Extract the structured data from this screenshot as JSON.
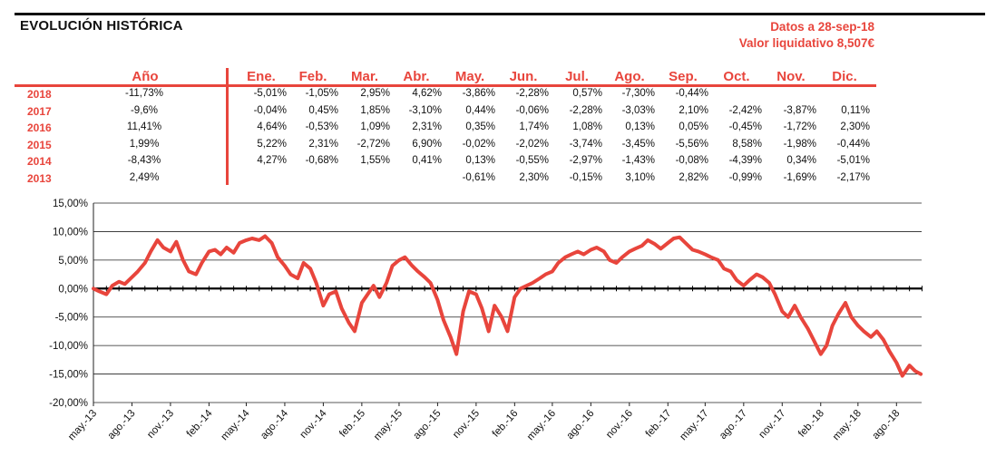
{
  "header": {
    "title": "EVOLUCIÓN HISTÓRICA",
    "date_label": "Datos a 28-sep-18",
    "nav_label": "Valor liquidativo 8,507€"
  },
  "table": {
    "year_header": "Año",
    "month_headers": [
      "Ene.",
      "Feb.",
      "Mar.",
      "Abr.",
      "May.",
      "Jun.",
      "Jul.",
      "Ago.",
      "Sep.",
      "Oct.",
      "Nov.",
      "Dic."
    ],
    "rows": [
      {
        "year": "2018",
        "annual": "-11,73%",
        "months": [
          "-5,01%",
          "-1,05%",
          "2,95%",
          "4,62%",
          "-3,86%",
          "-2,28%",
          "0,57%",
          "-7,30%",
          "-0,44%",
          "",
          "",
          ""
        ]
      },
      {
        "year": "2017",
        "annual": "-9,6%",
        "months": [
          "-0,04%",
          "0,45%",
          "1,85%",
          "-3,10%",
          "0,44%",
          "-0,06%",
          "-2,28%",
          "-3,03%",
          "2,10%",
          "-2,42%",
          "-3,87%",
          "0,11%"
        ]
      },
      {
        "year": "2016",
        "annual": "11,41%",
        "months": [
          "4,64%",
          "-0,53%",
          "1,09%",
          "2,31%",
          "0,35%",
          "1,74%",
          "1,08%",
          "0,13%",
          "0,05%",
          "-0,45%",
          "-1,72%",
          "2,30%"
        ]
      },
      {
        "year": "2015",
        "annual": "1,99%",
        "months": [
          "5,22%",
          "2,31%",
          "-2,72%",
          "6,90%",
          "-0,02%",
          "-2,02%",
          "-3,74%",
          "-3,45%",
          "-5,56%",
          "8,58%",
          "-1,98%",
          "-0,44%"
        ]
      },
      {
        "year": "2014",
        "annual": "-8,43%",
        "months": [
          "4,27%",
          "-0,68%",
          "1,55%",
          "0,41%",
          "0,13%",
          "-0,55%",
          "-2,97%",
          "-1,43%",
          "-0,08%",
          "-4,39%",
          "0,34%",
          "-5,01%"
        ]
      },
      {
        "year": "2013",
        "annual": "2,49%",
        "months": [
          "",
          "",
          "",
          "",
          "-0,61%",
          "2,30%",
          "-0,15%",
          "3,10%",
          "2,82%",
          "-0,99%",
          "-1,69%",
          "-2,17%"
        ]
      }
    ]
  },
  "chart_data": {
    "type": "line",
    "title": "",
    "xlabel": "",
    "ylabel": "",
    "ylim": [
      -20,
      15
    ],
    "y_ticks": [
      "15,00%",
      "10,00%",
      "5,00%",
      "0,00%",
      "-5,00%",
      "-10,00%",
      "-15,00%",
      "-20,00%"
    ],
    "y_tick_values": [
      15,
      10,
      5,
      0,
      -5,
      -10,
      -15,
      -20
    ],
    "x_ticks": [
      "may.-13",
      "ago.-13",
      "nov.-13",
      "feb.-14",
      "may.-14",
      "ago.-14",
      "nov.-14",
      "feb.-15",
      "may.-15",
      "ago.-15",
      "nov.-15",
      "feb.-16",
      "may.-16",
      "ago.-16",
      "nov.-16",
      "feb.-17",
      "may.-17",
      "ago.-17",
      "nov.-17",
      "feb.-18",
      "may.-18",
      "ago.-18"
    ],
    "grid": true,
    "line_color": "#e8453c",
    "series": [
      {
        "values": [
          [
            "2013-05-01",
            0.0
          ],
          [
            "2013-05-15",
            -0.5
          ],
          [
            "2013-06-01",
            -1.0
          ],
          [
            "2013-06-15",
            0.5
          ],
          [
            "2013-07-01",
            1.2
          ],
          [
            "2013-07-15",
            0.8
          ],
          [
            "2013-08-01",
            2.0
          ],
          [
            "2013-08-15",
            3.0
          ],
          [
            "2013-09-01",
            4.5
          ],
          [
            "2013-09-15",
            6.5
          ],
          [
            "2013-10-01",
            8.5
          ],
          [
            "2013-10-15",
            7.2
          ],
          [
            "2013-11-01",
            6.5
          ],
          [
            "2013-11-15",
            8.2
          ],
          [
            "2013-12-01",
            5.0
          ],
          [
            "2013-12-15",
            3.0
          ],
          [
            "2014-01-01",
            2.5
          ],
          [
            "2014-01-15",
            4.5
          ],
          [
            "2014-02-01",
            6.5
          ],
          [
            "2014-02-15",
            6.8
          ],
          [
            "2014-03-01",
            6.0
          ],
          [
            "2014-03-15",
            7.2
          ],
          [
            "2014-04-01",
            6.3
          ],
          [
            "2014-04-15",
            8.0
          ],
          [
            "2014-05-01",
            8.5
          ],
          [
            "2014-05-15",
            8.8
          ],
          [
            "2014-06-01",
            8.5
          ],
          [
            "2014-06-15",
            9.2
          ],
          [
            "2014-07-01",
            8.0
          ],
          [
            "2014-07-15",
            5.5
          ],
          [
            "2014-08-01",
            4.0
          ],
          [
            "2014-08-15",
            2.5
          ],
          [
            "2014-09-01",
            1.8
          ],
          [
            "2014-09-15",
            4.5
          ],
          [
            "2014-10-01",
            3.5
          ],
          [
            "2014-10-15",
            1.0
          ],
          [
            "2014-11-01",
            -3.0
          ],
          [
            "2014-11-15",
            -1.0
          ],
          [
            "2014-12-01",
            -0.5
          ],
          [
            "2014-12-15",
            -3.5
          ],
          [
            "2015-01-01",
            -6.0
          ],
          [
            "2015-01-15",
            -7.5
          ],
          [
            "2015-02-01",
            -2.5
          ],
          [
            "2015-02-15",
            -1.0
          ],
          [
            "2015-03-01",
            0.5
          ],
          [
            "2015-03-15",
            -1.5
          ],
          [
            "2015-04-01",
            1.0
          ],
          [
            "2015-04-15",
            4.0
          ],
          [
            "2015-05-01",
            5.0
          ],
          [
            "2015-05-15",
            5.5
          ],
          [
            "2015-06-01",
            4.0
          ],
          [
            "2015-06-15",
            3.0
          ],
          [
            "2015-07-01",
            2.0
          ],
          [
            "2015-07-15",
            1.0
          ],
          [
            "2015-08-01",
            -2.0
          ],
          [
            "2015-08-15",
            -5.5
          ],
          [
            "2015-09-01",
            -8.5
          ],
          [
            "2015-09-15",
            -11.5
          ],
          [
            "2015-10-01",
            -4.0
          ],
          [
            "2015-10-15",
            -0.5
          ],
          [
            "2015-11-01",
            -1.0
          ],
          [
            "2015-11-15",
            -3.5
          ],
          [
            "2015-12-01",
            -7.5
          ],
          [
            "2015-12-15",
            -3.0
          ],
          [
            "2016-01-01",
            -5.0
          ],
          [
            "2016-01-15",
            -7.5
          ],
          [
            "2016-02-01",
            -1.5
          ],
          [
            "2016-02-15",
            0.0
          ],
          [
            "2016-03-01",
            0.5
          ],
          [
            "2016-03-15",
            1.0
          ],
          [
            "2016-04-01",
            1.8
          ],
          [
            "2016-04-15",
            2.5
          ],
          [
            "2016-05-01",
            3.0
          ],
          [
            "2016-05-15",
            4.5
          ],
          [
            "2016-06-01",
            5.5
          ],
          [
            "2016-06-15",
            6.0
          ],
          [
            "2016-07-01",
            6.5
          ],
          [
            "2016-07-15",
            6.0
          ],
          [
            "2016-08-01",
            6.8
          ],
          [
            "2016-08-15",
            7.2
          ],
          [
            "2016-09-01",
            6.5
          ],
          [
            "2016-09-15",
            5.0
          ],
          [
            "2016-10-01",
            4.5
          ],
          [
            "2016-10-15",
            5.5
          ],
          [
            "2016-11-01",
            6.5
          ],
          [
            "2016-11-15",
            7.0
          ],
          [
            "2016-12-01",
            7.5
          ],
          [
            "2016-12-15",
            8.5
          ],
          [
            "2017-01-01",
            7.8
          ],
          [
            "2017-01-15",
            7.0
          ],
          [
            "2017-02-01",
            8.0
          ],
          [
            "2017-02-15",
            8.8
          ],
          [
            "2017-03-01",
            9.0
          ],
          [
            "2017-03-15",
            8.0
          ],
          [
            "2017-04-01",
            6.8
          ],
          [
            "2017-04-15",
            6.5
          ],
          [
            "2017-05-01",
            6.0
          ],
          [
            "2017-05-15",
            5.5
          ],
          [
            "2017-06-01",
            5.0
          ],
          [
            "2017-06-15",
            3.5
          ],
          [
            "2017-07-01",
            3.0
          ],
          [
            "2017-07-15",
            1.5
          ],
          [
            "2017-08-01",
            0.5
          ],
          [
            "2017-08-15",
            1.5
          ],
          [
            "2017-09-01",
            2.5
          ],
          [
            "2017-09-15",
            2.0
          ],
          [
            "2017-10-01",
            1.0
          ],
          [
            "2017-10-15",
            -1.0
          ],
          [
            "2017-11-01",
            -4.0
          ],
          [
            "2017-11-15",
            -5.0
          ],
          [
            "2017-12-01",
            -3.0
          ],
          [
            "2017-12-15",
            -5.0
          ],
          [
            "2018-01-01",
            -7.0
          ],
          [
            "2018-01-15",
            -9.0
          ],
          [
            "2018-02-01",
            -11.5
          ],
          [
            "2018-02-15",
            -10.0
          ],
          [
            "2018-03-01",
            -6.5
          ],
          [
            "2018-03-15",
            -4.5
          ],
          [
            "2018-04-01",
            -2.5
          ],
          [
            "2018-04-15",
            -5.0
          ],
          [
            "2018-05-01",
            -6.5
          ],
          [
            "2018-05-15",
            -7.5
          ],
          [
            "2018-06-01",
            -8.5
          ],
          [
            "2018-06-15",
            -7.5
          ],
          [
            "2018-07-01",
            -9.0
          ],
          [
            "2018-07-15",
            -11.0
          ],
          [
            "2018-08-01",
            -13.0
          ],
          [
            "2018-08-15",
            -15.3
          ],
          [
            "2018-09-01",
            -13.5
          ],
          [
            "2018-09-15",
            -14.5
          ],
          [
            "2018-09-28",
            -15.0
          ]
        ]
      }
    ]
  }
}
